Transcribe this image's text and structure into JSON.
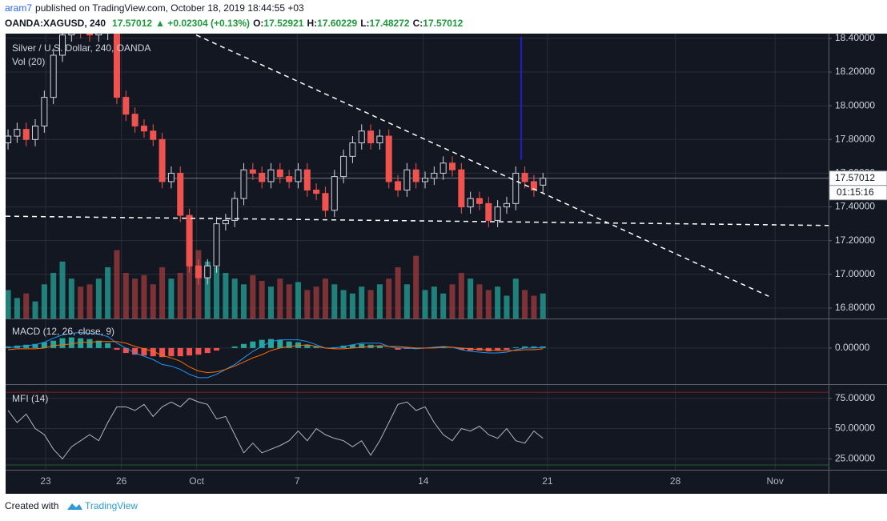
{
  "header": {
    "user": "aram7",
    "published": "published on TradingView.com, October 18, 2019 18:44:55 +03",
    "symbol": "OANDA:XAGUSD, 240",
    "change": "▲ +0.02304 (+0.13%)",
    "ohlc_labels": [
      "O:",
      "H:",
      "L:",
      "C:"
    ]
  },
  "footer": {
    "text": "Created with",
    "brand": "TradingView"
  },
  "chart_data": {
    "type": "candlestick",
    "title": "Silver / U.S. Dollar, 240, OANDA",
    "x": [
      0,
      1,
      2,
      3,
      4,
      5,
      6,
      7,
      8,
      9,
      10,
      11,
      12,
      13,
      14,
      15,
      16,
      17,
      18,
      19,
      20,
      21,
      22,
      23,
      24,
      25,
      26,
      27,
      28,
      29,
      30,
      31,
      32,
      33,
      34,
      35,
      36,
      37,
      38,
      39,
      40,
      41,
      42,
      43,
      44,
      45,
      46,
      47,
      48,
      49,
      50,
      51,
      52,
      53,
      54,
      55,
      56,
      57,
      58,
      59
    ],
    "xlim": [
      -0.27,
      90.5
    ],
    "xticks": [
      {
        "value": 4.15,
        "label": "23"
      },
      {
        "value": 12.5,
        "label": "26"
      },
      {
        "value": 20.8,
        "label": "Oct"
      },
      {
        "value": 31.9,
        "label": "7"
      },
      {
        "value": 45.8,
        "label": "14"
      },
      {
        "value": 59.5,
        "label": "21"
      },
      {
        "value": 73.6,
        "label": "28"
      },
      {
        "value": 84.6,
        "label": "Nov"
      }
    ],
    "ylim": [
      16.738,
      18.428
    ],
    "yticks": [
      {
        "value": 16.8,
        "label": "16.80000"
      },
      {
        "value": 17.0,
        "label": "17.00000"
      },
      {
        "value": 17.2,
        "label": "17.20000"
      },
      {
        "value": 17.4,
        "label": "17.40000"
      },
      {
        "value": 17.6,
        "label": "17.60000"
      },
      {
        "value": 17.8,
        "label": "17.80000"
      },
      {
        "value": 18.0,
        "label": "18.00000"
      },
      {
        "value": 18.2,
        "label": "18.20000"
      },
      {
        "value": 18.4,
        "label": "18.40000"
      }
    ],
    "open": [
      17.78,
      17.82,
      17.86,
      17.8,
      17.88,
      18.05,
      18.3,
      18.42,
      18.45,
      18.44,
      18.42,
      18.43,
      18.45,
      18.05,
      17.95,
      17.88,
      17.85,
      17.8,
      17.55,
      17.6,
      17.35,
      17.05,
      16.98,
      17.05,
      17.3,
      17.32,
      17.45,
      17.62,
      17.6,
      17.55,
      17.62,
      17.58,
      17.55,
      17.62,
      17.5,
      17.48,
      17.38,
      17.58,
      17.7,
      17.78,
      17.85,
      17.78,
      17.82,
      17.55,
      17.5,
      17.62,
      17.55,
      17.57,
      17.6,
      17.66,
      17.62,
      17.4,
      17.45,
      17.42,
      17.32,
      17.4,
      17.42,
      17.6,
      17.55,
      17.52921
    ],
    "high": [
      17.86,
      17.9,
      17.9,
      17.92,
      18.09,
      18.34,
      18.46,
      18.49,
      18.49,
      18.48,
      18.47,
      18.49,
      18.49,
      18.09,
      17.99,
      17.92,
      17.89,
      17.84,
      17.64,
      17.64,
      17.39,
      17.09,
      17.09,
      17.34,
      17.36,
      17.49,
      17.66,
      17.66,
      17.64,
      17.66,
      17.66,
      17.62,
      17.66,
      17.66,
      17.54,
      17.52,
      17.62,
      17.74,
      17.82,
      17.89,
      17.89,
      17.86,
      17.86,
      17.59,
      17.66,
      17.66,
      17.61,
      17.64,
      17.7,
      17.7,
      17.66,
      17.49,
      17.49,
      17.46,
      17.44,
      17.46,
      17.64,
      17.64,
      17.59,
      17.60229
    ],
    "low": [
      17.74,
      17.78,
      17.76,
      17.76,
      17.84,
      18.01,
      18.26,
      18.38,
      18.4,
      18.38,
      18.38,
      18.39,
      18.01,
      17.91,
      17.84,
      17.81,
      17.76,
      17.51,
      17.51,
      17.31,
      17.01,
      16.94,
      16.94,
      17.01,
      17.26,
      17.28,
      17.41,
      17.56,
      17.51,
      17.51,
      17.54,
      17.51,
      17.51,
      17.46,
      17.44,
      17.34,
      17.34,
      17.54,
      17.66,
      17.74,
      17.74,
      17.74,
      17.51,
      17.46,
      17.46,
      17.51,
      17.51,
      17.53,
      17.56,
      17.58,
      17.36,
      17.36,
      17.38,
      17.28,
      17.28,
      17.36,
      17.38,
      17.51,
      17.46,
      17.48272
    ],
    "close": [
      17.82,
      17.86,
      17.8,
      17.88,
      18.05,
      18.3,
      18.42,
      18.45,
      18.44,
      18.42,
      18.43,
      18.45,
      18.05,
      17.95,
      17.88,
      17.85,
      17.8,
      17.55,
      17.6,
      17.35,
      17.05,
      16.98,
      17.05,
      17.3,
      17.32,
      17.45,
      17.62,
      17.6,
      17.55,
      17.62,
      17.58,
      17.55,
      17.62,
      17.5,
      17.48,
      17.38,
      17.58,
      17.7,
      17.78,
      17.85,
      17.78,
      17.82,
      17.55,
      17.5,
      17.62,
      17.55,
      17.57,
      17.6,
      17.66,
      17.62,
      17.4,
      17.45,
      17.42,
      17.32,
      17.4,
      17.42,
      17.6,
      17.55,
      17.5,
      17.57012
    ],
    "up_color": "#d1d4dc",
    "down_color": "#ef5350",
    "countdown": "01:15:16",
    "volume": {
      "name": "Vol (20)",
      "ylim": [
        0,
        250
      ],
      "up_color": "#26a69a",
      "down_color": "#a13c3c",
      "values": [
        25,
        18,
        22,
        15,
        30,
        40,
        50,
        35,
        28,
        30,
        35,
        45,
        60,
        40,
        35,
        38,
        30,
        45,
        35,
        40,
        55,
        60,
        50,
        45,
        40,
        35,
        30,
        38,
        33,
        28,
        35,
        30,
        32,
        25,
        28,
        35,
        30,
        25,
        22,
        28,
        25,
        30,
        35,
        45,
        30,
        55,
        25,
        28,
        22,
        30,
        40,
        35,
        30,
        25,
        28,
        20,
        35,
        25,
        20,
        22
      ]
    },
    "macd": {
      "name": "MACD (12, 26, close, 9)",
      "ylim": [
        -0.215,
        0.175
      ],
      "yticks": [
        {
          "value": 0,
          "label": "0.00000"
        }
      ],
      "hist_up": "#26a69a",
      "hist_down": "#ef5350",
      "macd_color": "#2196f3",
      "signal_color": "#ff6d00",
      "histogram": [
        0.01,
        0.015,
        0.02,
        0.025,
        0.035,
        0.045,
        0.06,
        0.065,
        0.06,
        0.055,
        0.045,
        0.03,
        -0.01,
        -0.03,
        -0.04,
        -0.045,
        -0.05,
        -0.055,
        -0.05,
        -0.05,
        -0.045,
        -0.04,
        -0.03,
        -0.015,
        0.0,
        0.01,
        0.025,
        0.04,
        0.05,
        0.055,
        0.05,
        0.04,
        0.035,
        0.02,
        0.01,
        0.0,
        0.005,
        0.015,
        0.02,
        0.025,
        0.02,
        0.015,
        0.0,
        -0.01,
        -0.005,
        -0.005,
        0.0,
        0.005,
        0.005,
        0.0,
        -0.01,
        -0.015,
        -0.015,
        -0.02,
        -0.015,
        -0.01,
        0.005,
        0.01,
        0.01,
        0.01
      ],
      "macd": [
        0.0,
        0.01,
        0.015,
        0.02,
        0.035,
        0.06,
        0.08,
        0.09,
        0.095,
        0.09,
        0.085,
        0.07,
        0.03,
        0.0,
        -0.03,
        -0.05,
        -0.07,
        -0.1,
        -0.11,
        -0.13,
        -0.16,
        -0.18,
        -0.18,
        -0.16,
        -0.13,
        -0.1,
        -0.06,
        -0.02,
        0.01,
        0.04,
        0.05,
        0.05,
        0.05,
        0.04,
        0.02,
        0.0,
        0.0,
        0.01,
        0.02,
        0.03,
        0.03,
        0.03,
        0.01,
        0.0,
        0.0,
        -0.005,
        0.0,
        0.005,
        0.01,
        0.005,
        -0.01,
        -0.02,
        -0.025,
        -0.03,
        -0.03,
        -0.025,
        -0.01,
        0.0,
        0.0,
        0.005
      ],
      "signal": [
        -0.01,
        -0.005,
        -0.005,
        -0.005,
        0.0,
        0.015,
        0.02,
        0.025,
        0.035,
        0.035,
        0.04,
        0.04,
        0.04,
        0.03,
        0.01,
        -0.005,
        -0.02,
        -0.045,
        -0.06,
        -0.08,
        -0.115,
        -0.14,
        -0.15,
        -0.145,
        -0.13,
        -0.11,
        -0.085,
        -0.06,
        -0.04,
        -0.015,
        0.0,
        0.01,
        0.015,
        0.02,
        0.01,
        0.0,
        -0.005,
        -0.005,
        0.0,
        0.005,
        0.01,
        0.015,
        0.01,
        0.01,
        0.005,
        0.0,
        0.0,
        0.0,
        0.005,
        0.005,
        0.0,
        -0.005,
        -0.01,
        -0.01,
        -0.015,
        -0.015,
        -0.015,
        -0.01,
        -0.01,
        -0.005
      ]
    },
    "mfi": {
      "name": "MFI (14)",
      "ylim": [
        16,
        85.4
      ],
      "color": "#b2b5be",
      "yticks": [
        {
          "value": 25,
          "label": "25.00000"
        },
        {
          "value": 50,
          "label": "50.00000"
        },
        {
          "value": 75,
          "label": "75.00000"
        }
      ],
      "bands": [
        {
          "value": 80,
          "color": "#8b1c1c"
        },
        {
          "value": 20,
          "color": "#1d5e2a"
        }
      ],
      "values": [
        65,
        55,
        62,
        50,
        45,
        33,
        25,
        35,
        40,
        45,
        40,
        55,
        68,
        68,
        65,
        70,
        60,
        68,
        72,
        68,
        75,
        72,
        70,
        58,
        60,
        45,
        30,
        38,
        30,
        33,
        36,
        40,
        48,
        40,
        50,
        45,
        42,
        40,
        35,
        40,
        28,
        40,
        55,
        70,
        72,
        65,
        68,
        55,
        45,
        40,
        50,
        48,
        52,
        45,
        42,
        50,
        40,
        38,
        48,
        42
      ]
    },
    "drawings": [
      {
        "color": "#ffffff",
        "dash": true,
        "points": [
          [
            20.75,
            18.42
          ],
          [
            83.9,
            16.87
          ]
        ]
      },
      {
        "color": "#ffffff",
        "dash": true,
        "points": [
          [
            -0.27,
            17.345
          ],
          [
            90.5,
            17.29
          ]
        ]
      },
      {
        "color": "#1f1fd0",
        "dash": false,
        "points": [
          [
            56.6,
            18.41
          ],
          [
            56.6,
            17.68
          ]
        ]
      }
    ]
  }
}
